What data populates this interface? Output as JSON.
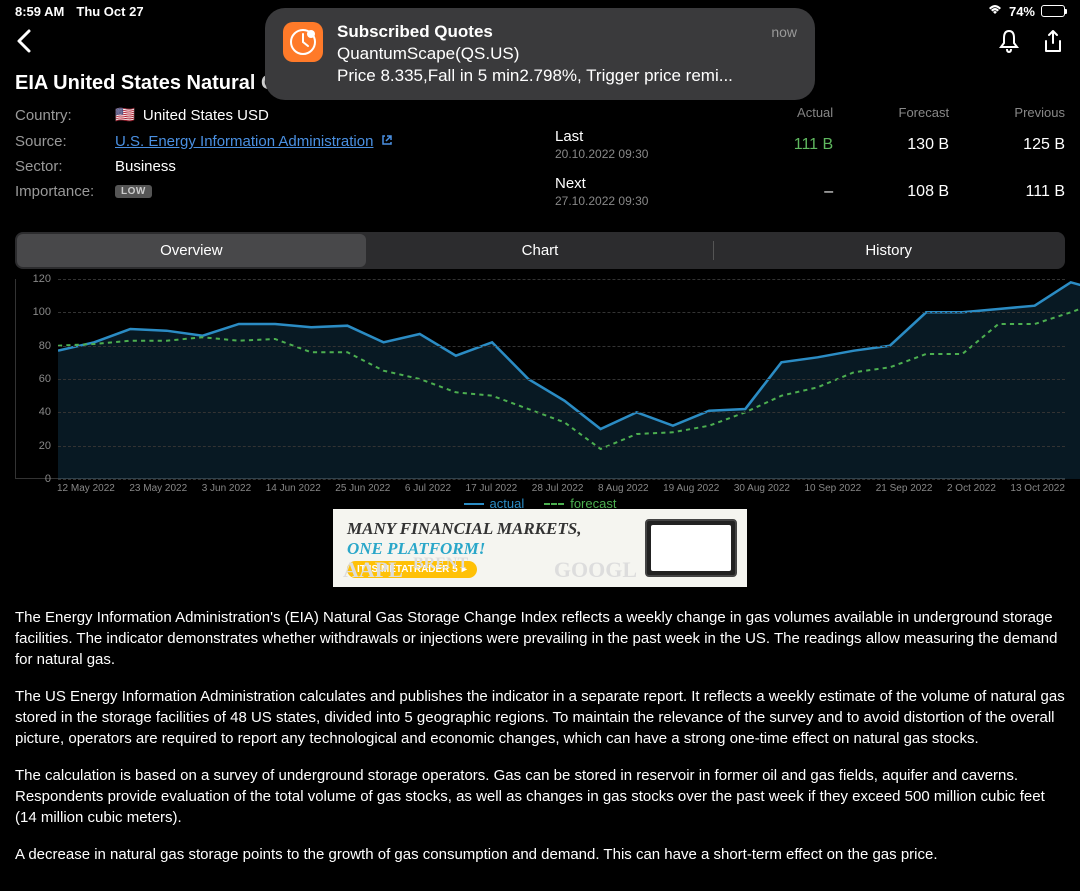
{
  "status": {
    "time": "8:59 AM",
    "date": "Thu Oct 27",
    "battery_pct": "74%",
    "battery_fill": 74
  },
  "notification": {
    "icon_bg": "#ff7a29",
    "title": "Subscribed Quotes",
    "time": "now",
    "subtitle": "QuantumScape(QS.US)",
    "message": "Price 8.335,Fall in 5 min2.798%, Trigger price remi..."
  },
  "page": {
    "title": "EIA United States Natural Gas St..."
  },
  "info": {
    "country_label": "Country:",
    "country_flag": "🇺🇸",
    "country_val": "United States USD",
    "source_label": "Source:",
    "source_link": "U.S. Energy Information Administration",
    "sector_label": "Sector:",
    "sector_val": "Business",
    "importance_label": "Importance:",
    "importance_badge": "LOW"
  },
  "data_table": {
    "headers": [
      "",
      "Actual",
      "Forecast",
      "Previous"
    ],
    "rows": [
      {
        "label": "Last",
        "sub": "20.10.2022 09:30",
        "actual": "111 B",
        "actual_color": "#5fb85f",
        "forecast": "130 B",
        "previous": "125 B"
      },
      {
        "label": "Next",
        "sub": "27.10.2022 09:30",
        "actual": "–",
        "actual_color": "#ffffff",
        "forecast": "108 B",
        "previous": "111 B"
      }
    ]
  },
  "tabs": {
    "items": [
      "Overview",
      "Chart",
      "History"
    ],
    "active": 0
  },
  "chart": {
    "type": "line-area",
    "y_ticks": [
      0,
      20,
      40,
      60,
      80,
      100,
      120
    ],
    "y_max": 120,
    "x_ticks": [
      "12 May 2022",
      "23 May 2022",
      "3 Jun 2022",
      "14 Jun 2022",
      "25 Jun 2022",
      "6 Jul 2022",
      "17 Jul 2022",
      "28 Jul 2022",
      "8 Aug 2022",
      "19 Aug 2022",
      "30 Aug 2022",
      "10 Sep 2022",
      "21 Sep 2022",
      "2 Oct 2022",
      "13 Oct 2022"
    ],
    "series": {
      "actual": {
        "label": "actual",
        "color": "#2b8cc4",
        "fill": "rgba(43,140,196,0.18)",
        "values": [
          77,
          82,
          90,
          89,
          86,
          93,
          93,
          91,
          92,
          82,
          87,
          74,
          82,
          60,
          47,
          30,
          40,
          32,
          41,
          42,
          70,
          73,
          77,
          80,
          100,
          100,
          102,
          104,
          118,
          112
        ]
      },
      "forecast": {
        "label": "forecast",
        "color": "#4caf50",
        "dashed": true,
        "values": [
          80,
          81,
          83,
          83,
          85,
          83,
          84,
          76,
          76,
          65,
          60,
          52,
          50,
          42,
          34,
          18,
          27,
          28,
          32,
          40,
          50,
          55,
          64,
          67,
          75,
          75,
          93,
          93,
          100,
          108
        ]
      }
    }
  },
  "ad": {
    "line1": "MANY FINANCIAL MARKETS,",
    "line2": "ONE PLATFORM!",
    "line2_color": "#2aa7c9",
    "button": "IT IS METATRADER 5",
    "bg_words": [
      "AAPL",
      "BRENT",
      "GOOGL"
    ]
  },
  "description": {
    "p1": "The Energy Information Administration's (EIA) Natural Gas Storage Change Index reflects a weekly change in gas volumes available in underground storage facilities. The indicator demonstrates whether withdrawals or injections were prevailing in the past week in the US. The readings allow measuring the demand for natural gas.",
    "p2": "The US Energy Information Administration calculates and publishes the indicator in a separate report. It reflects a weekly estimate of the volume of natural gas stored in the storage facilities of 48 US states, divided into 5 geographic regions. To maintain the relevance of the survey and to avoid distortion of the overall picture, operators are required to report any technological and economic changes, which can have a strong one-time effect on natural gas stocks.",
    "p3": "The calculation is based on a survey of underground storage operators. Gas can be stored in reservoir in former oil and gas fields, aquifer and caverns. Respondents provide evaluation of the total volume of gas stocks, as well as changes in gas stocks over the past week if they exceed 500 million cubic feet (14 million cubic meters).",
    "p4": "A decrease in natural gas storage points to the growth of gas consumption and demand. This can have a short-term effect on the gas price."
  }
}
